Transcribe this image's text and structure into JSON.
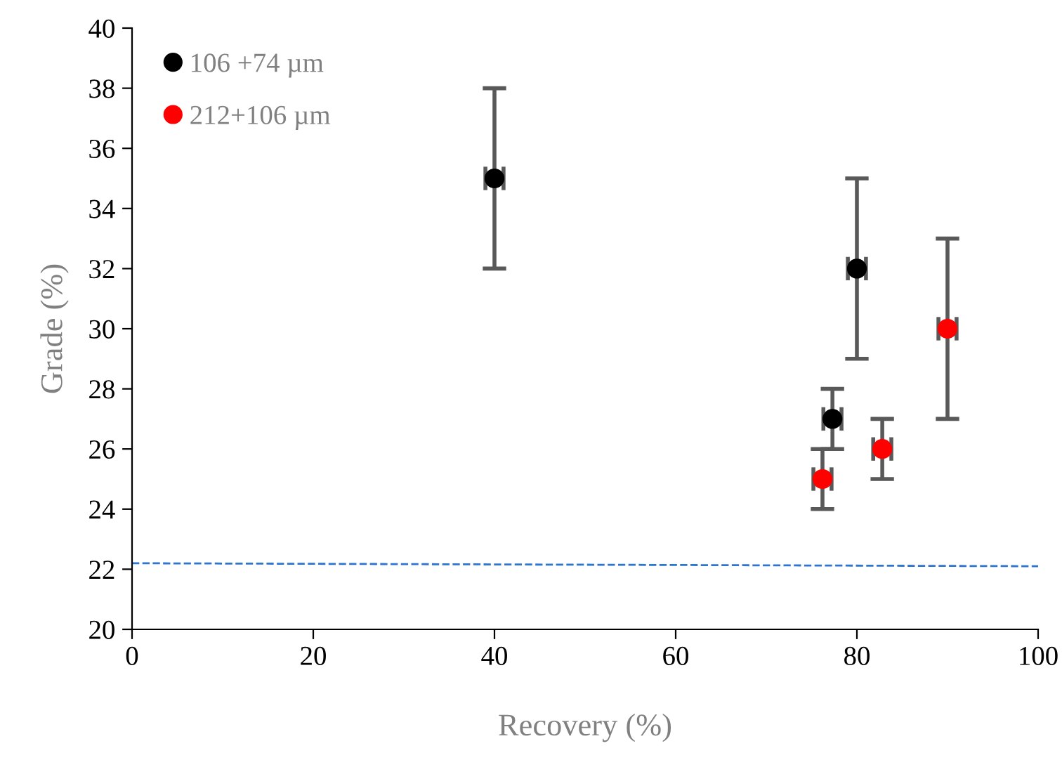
{
  "chart_data": {
    "type": "scatter",
    "xlabel": "Recovery (%)",
    "ylabel": "Grade (%)",
    "xlim": [
      0,
      100
    ],
    "xticks": [
      0,
      20,
      40,
      60,
      80,
      100
    ],
    "ylim": [
      20,
      40
    ],
    "yticks": [
      20,
      22,
      24,
      26,
      28,
      30,
      32,
      34,
      36,
      38,
      40
    ],
    "grid": false,
    "legend": "top left",
    "marker": "circle",
    "series": [
      {
        "name": "106 +74 µm",
        "color": "#000000",
        "x": [
          40,
          80,
          77.3
        ],
        "values": [
          35,
          32,
          27
        ],
        "errors": [
          3,
          3,
          1
        ],
        "xerrors": [
          1,
          1,
          1
        ]
      },
      {
        "name": "212+106 µm",
        "color": "#ff0000",
        "x": [
          76.2,
          82.8,
          90
        ],
        "values": [
          25,
          26,
          30
        ],
        "errors": [
          1,
          1,
          3
        ],
        "xerrors": [
          1,
          1,
          1
        ]
      },
      {
        "type": "line",
        "color": "#2e75d0",
        "line_style": "dashed",
        "marker": "none",
        "x": [
          0,
          100
        ],
        "values": [
          22.2,
          22.1
        ]
      }
    ]
  }
}
